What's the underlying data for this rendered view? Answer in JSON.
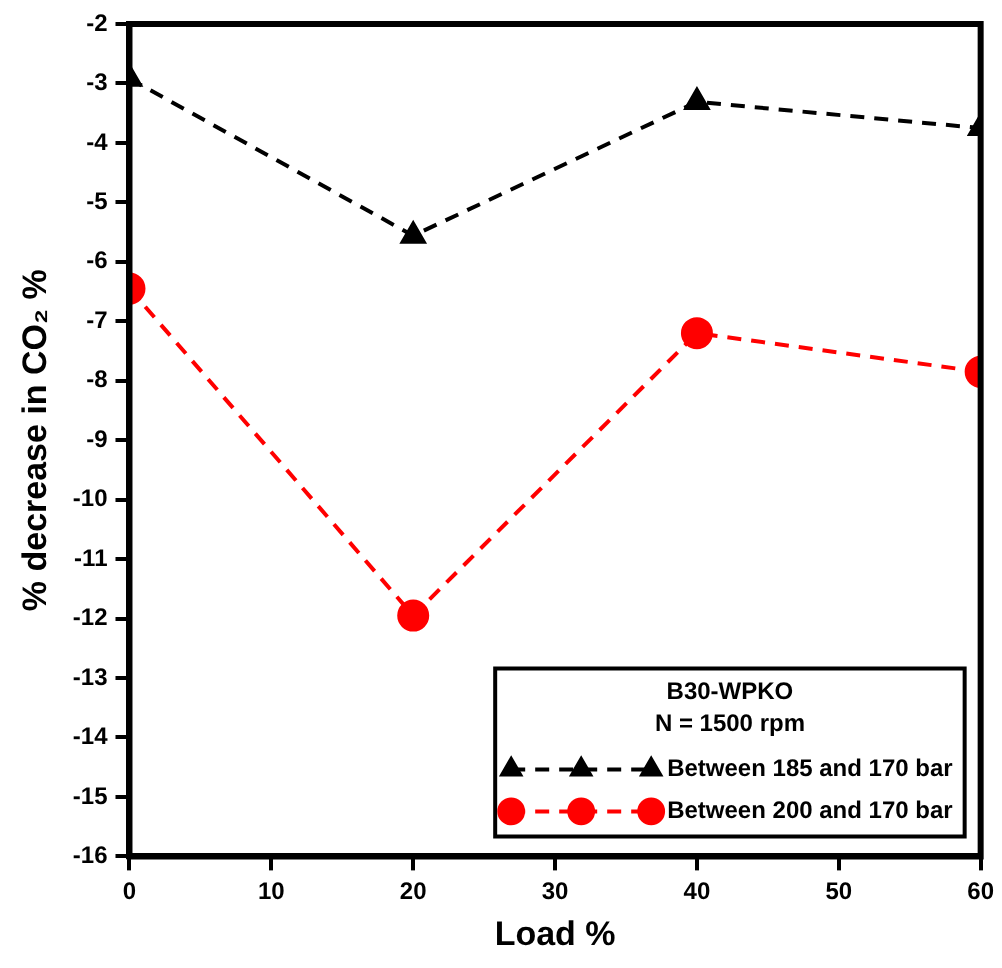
{
  "chart_data": {
    "type": "line",
    "xlabel": "Load %",
    "ylabel": "% decrease in CO₂ %",
    "legend_title": "B30-WPKO\nN = 1500 rpm",
    "x": [
      0,
      20,
      40,
      60
    ],
    "series": [
      {
        "name": "Between 185 and 170 bar",
        "color": "#000000",
        "marker": "triangle",
        "line_style": "dashed",
        "values": [
          -2.92,
          -5.56,
          -3.31,
          -3.75
        ]
      },
      {
        "name": "Between 200 and 170 bar",
        "color": "#ff0000",
        "marker": "circle",
        "line_style": "dashed",
        "values": [
          -6.45,
          -11.95,
          -7.2,
          -7.85
        ]
      }
    ],
    "xlim": [
      0,
      60
    ],
    "xticks": [
      0,
      10,
      20,
      30,
      40,
      50,
      60
    ],
    "ylim": [
      -16,
      -2
    ],
    "yticks": [
      -16,
      -15,
      -14,
      -13,
      -12,
      -11,
      -10,
      -9,
      -8,
      -7,
      -6,
      -5,
      -4,
      -3,
      -2
    ],
    "grid": false,
    "legend": "bottom right"
  }
}
